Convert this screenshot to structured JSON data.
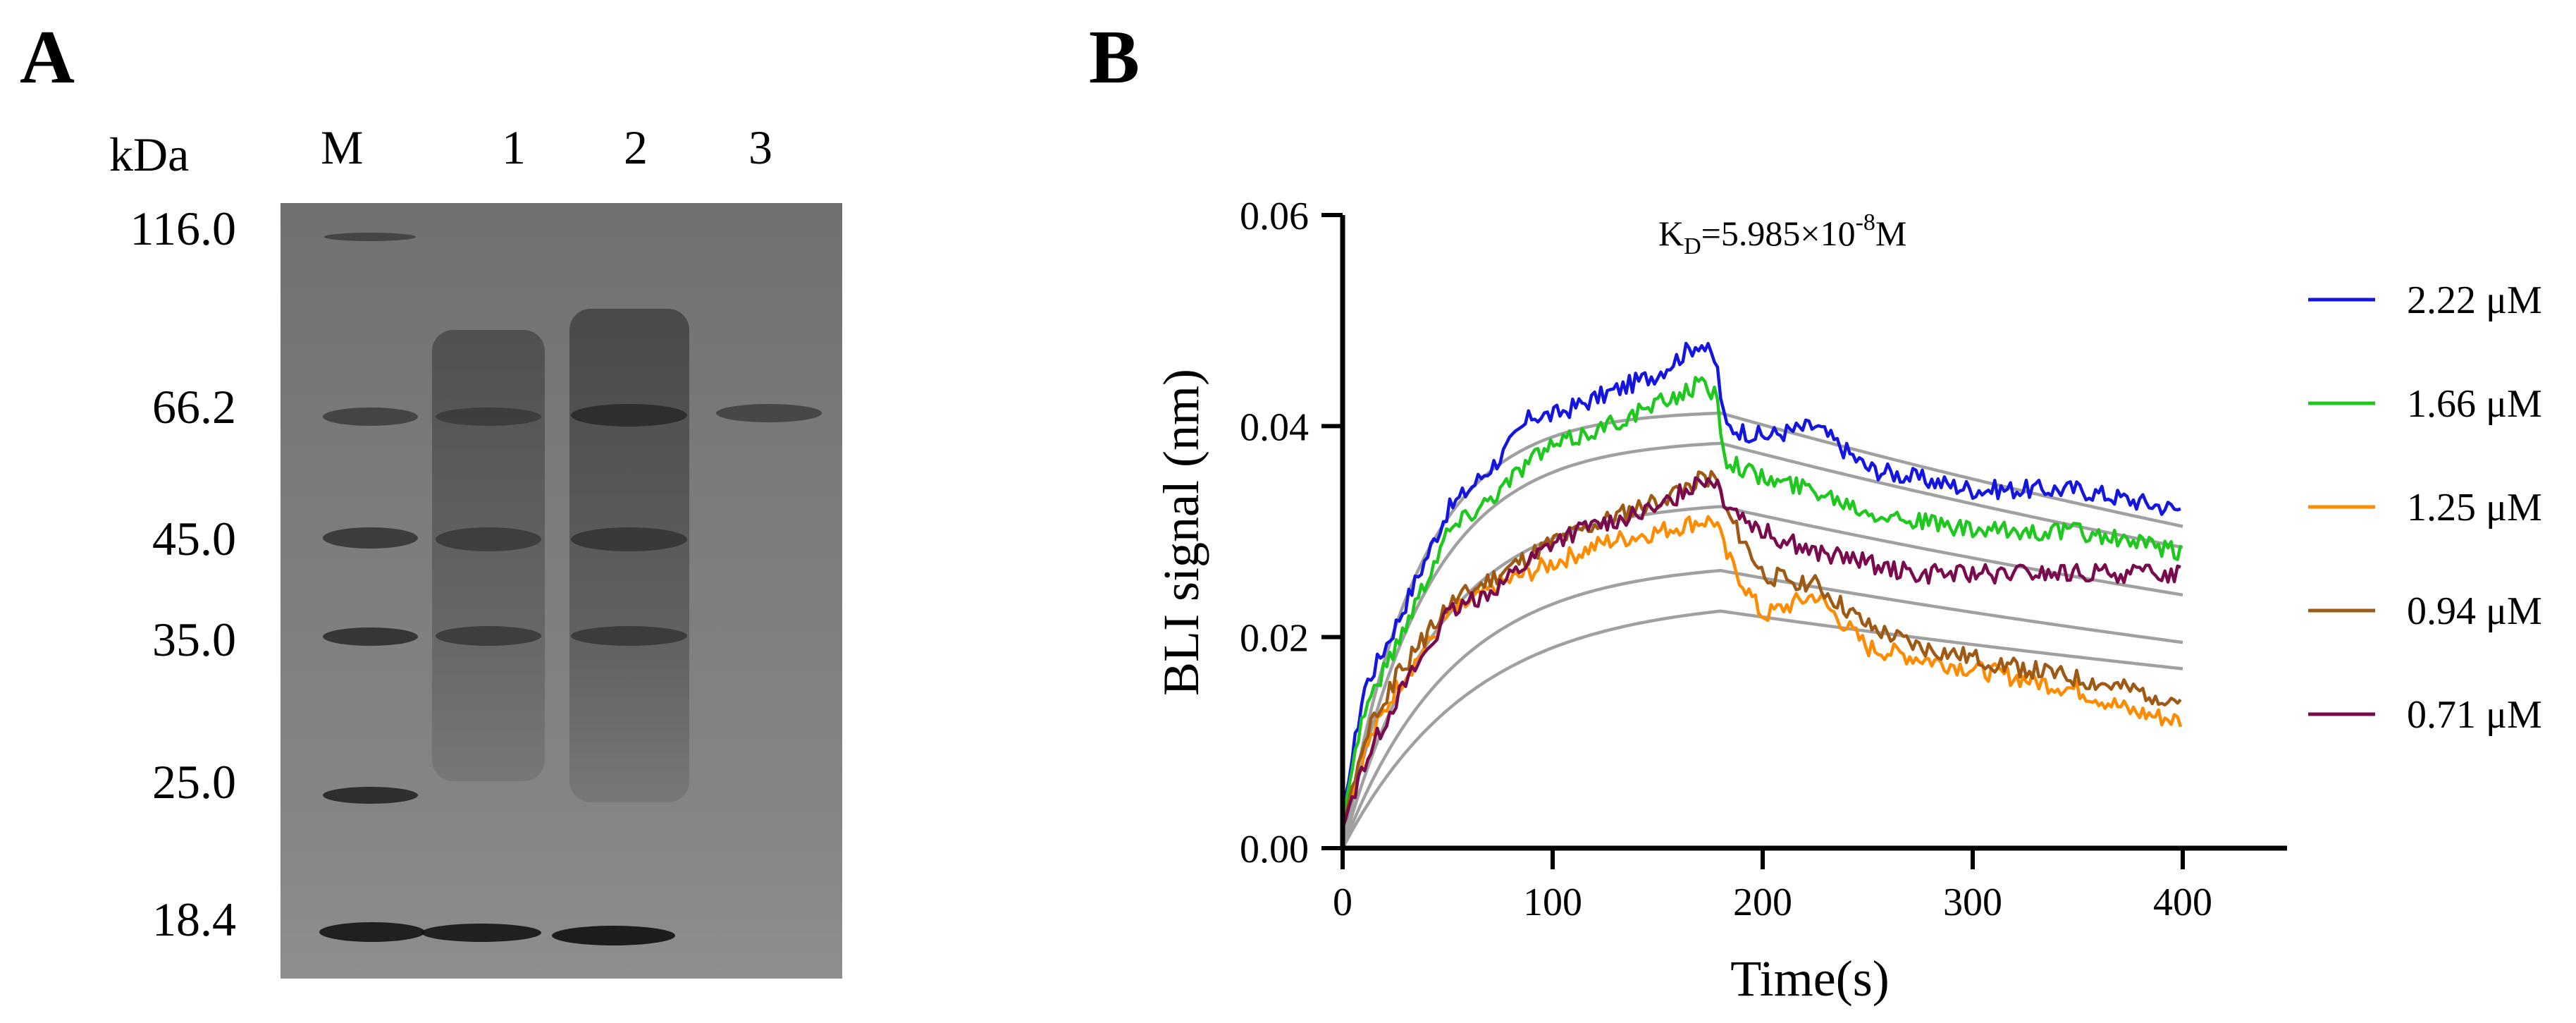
{
  "panel_a": {
    "letter": "A",
    "unit_label": "kDa",
    "lane_labels": [
      "M",
      "1",
      "2",
      "3"
    ],
    "marker_labels": [
      "116.0",
      "66.2",
      "45.0",
      "35.0",
      "25.0",
      "18.4"
    ]
  },
  "panel_b": {
    "letter": "B"
  },
  "chart_data": {
    "type": "line",
    "title": "",
    "annotation": {
      "prefix": "K",
      "subscript": "D",
      "mid": "=5.985×10",
      "superscript": "-8",
      "suffix": "M"
    },
    "xlabel": "Time(s)",
    "ylabel": "BLI signal (nm)",
    "xlim": [
      0,
      450
    ],
    "ylim": [
      0,
      0.06
    ],
    "x_ticks": [
      0,
      100,
      200,
      300,
      400
    ],
    "x_tick_labels": [
      "0",
      "100",
      "200",
      "300",
      "400"
    ],
    "y_ticks": [
      0,
      0.02,
      0.04,
      0.06
    ],
    "y_tick_labels": [
      "0.00",
      "0.02",
      "0.04",
      "0.06"
    ],
    "legend_position": "right",
    "association_end": 180,
    "series": [
      {
        "name": "2.22 μM",
        "color": "#1515e0",
        "x": [
          0,
          10,
          25,
          50,
          75,
          90,
          100,
          125,
          150,
          170,
          178,
          182,
          200,
          225,
          250,
          275,
          300,
          325,
          350,
          375,
          400
        ],
        "values": [
          0.003,
          0.015,
          0.021,
          0.032,
          0.037,
          0.041,
          0.041,
          0.043,
          0.045,
          0.048,
          0.046,
          0.04,
          0.039,
          0.04,
          0.036,
          0.035,
          0.034,
          0.034,
          0.034,
          0.033,
          0.032
        ]
      },
      {
        "name": "1.66 μM",
        "color": "#1ec81e",
        "x": [
          0,
          10,
          25,
          50,
          75,
          90,
          100,
          125,
          150,
          170,
          178,
          182,
          200,
          225,
          250,
          275,
          300,
          325,
          350,
          375,
          400
        ],
        "values": [
          0.003,
          0.013,
          0.019,
          0.03,
          0.034,
          0.037,
          0.038,
          0.04,
          0.042,
          0.044,
          0.043,
          0.037,
          0.035,
          0.034,
          0.032,
          0.031,
          0.03,
          0.03,
          0.03,
          0.029,
          0.028
        ]
      },
      {
        "name": "1.25 μM",
        "color": "#ff8c00",
        "x": [
          0,
          10,
          25,
          50,
          75,
          100,
          125,
          150,
          170,
          178,
          182,
          200,
          225,
          250,
          275,
          300,
          325,
          350,
          375,
          400
        ],
        "values": [
          0.002,
          0.009,
          0.015,
          0.022,
          0.025,
          0.027,
          0.029,
          0.03,
          0.031,
          0.031,
          0.028,
          0.022,
          0.024,
          0.019,
          0.018,
          0.017,
          0.016,
          0.015,
          0.013,
          0.012
        ]
      },
      {
        "name": "0.94 μM",
        "color": "#9e5a14",
        "x": [
          0,
          10,
          25,
          50,
          75,
          100,
          125,
          150,
          170,
          178,
          182,
          200,
          225,
          250,
          275,
          300,
          325,
          350,
          375,
          400
        ],
        "values": [
          0.002,
          0.01,
          0.016,
          0.023,
          0.026,
          0.029,
          0.031,
          0.033,
          0.035,
          0.035,
          0.032,
          0.026,
          0.025,
          0.021,
          0.019,
          0.018,
          0.017,
          0.016,
          0.015,
          0.014
        ]
      },
      {
        "name": "0.71 μM",
        "color": "#7a0a4e",
        "x": [
          0,
          10,
          25,
          50,
          75,
          100,
          125,
          150,
          170,
          178,
          182,
          200,
          225,
          250,
          275,
          300,
          325,
          350,
          375,
          400
        ],
        "values": [
          0.002,
          0.008,
          0.014,
          0.022,
          0.025,
          0.029,
          0.031,
          0.032,
          0.035,
          0.035,
          0.033,
          0.03,
          0.028,
          0.027,
          0.026,
          0.026,
          0.026,
          0.026,
          0.026,
          0.026
        ]
      }
    ],
    "fit_curves": {
      "color": "#a0a0a0",
      "plateaus": [
        0.0415,
        0.0388,
        0.033,
        0.0272,
        0.0238
      ],
      "end_values": [
        0.0305,
        0.0285,
        0.024,
        0.0195,
        0.017
      ]
    }
  }
}
